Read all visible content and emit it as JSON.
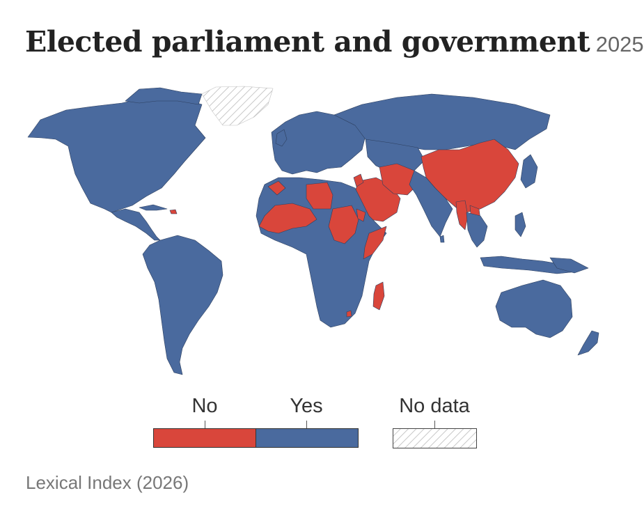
{
  "title": "Elected parliament and government",
  "year": "2025",
  "legend": {
    "no": "No",
    "yes": "Yes",
    "no_data": "No data"
  },
  "colors": {
    "no": "#d9463b",
    "yes": "#4a6a9e",
    "no_data_stroke": "#c0c0c0",
    "border": "#2d3f5e"
  },
  "source": "Lexical Index (2026)"
}
